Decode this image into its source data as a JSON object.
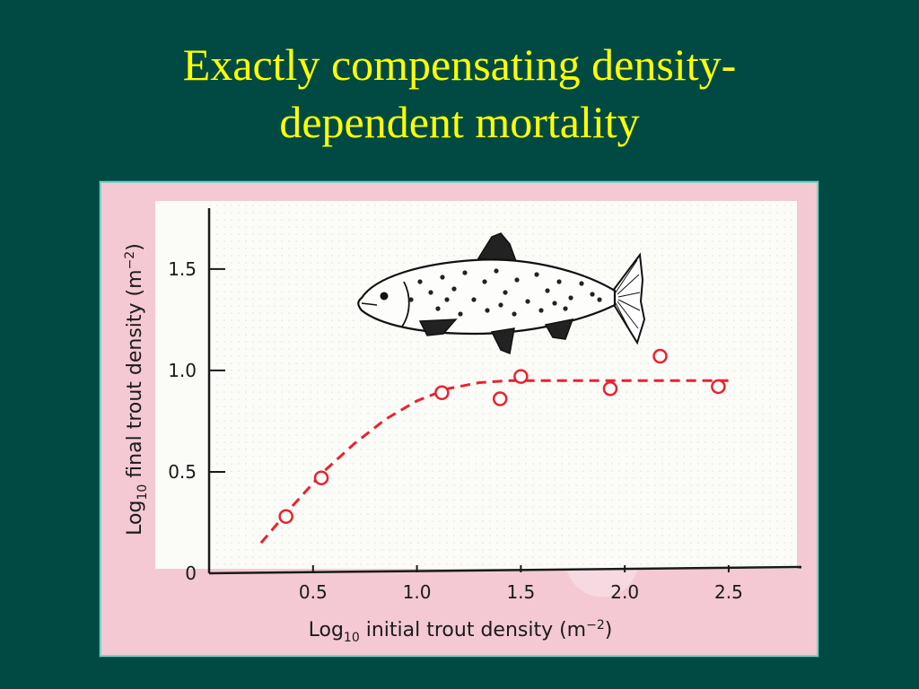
{
  "slide": {
    "title_line1": "Exactly compensating density-",
    "title_line2": "dependent mortality"
  },
  "colors": {
    "background": "#004a44",
    "title": "#ffff00",
    "data_marks": "#e8232f",
    "axis": "#1a1a1a"
  },
  "icons": {
    "illustration": "trout-illustration"
  },
  "chart_data": {
    "type": "scatter",
    "title": "",
    "xlabel_prefix": "Log",
    "xlabel_sub": "10",
    "xlabel_main": " initial trout density (m",
    "xlabel_sup": "−2",
    "xlabel_close": ")",
    "ylabel_prefix": "Log",
    "ylabel_sub": "10",
    "ylabel_main": " final trout density (m",
    "ylabel_sup": "−2",
    "ylabel_close": ")",
    "xlim": [
      0.0,
      2.85
    ],
    "ylim": [
      0.0,
      1.8
    ],
    "x_ticks": [
      0.5,
      1.0,
      1.5,
      2.0,
      2.5
    ],
    "x_tick_labels": [
      "0.5",
      "1.0",
      "1.5",
      "2.0",
      "2.5"
    ],
    "y_ticks": [
      0,
      0.5,
      1.0,
      1.5
    ],
    "y_tick_labels": [
      "0",
      "0.5",
      "1.0",
      "1.5"
    ],
    "grid": true,
    "series": [
      {
        "type": "scatter",
        "x": [
          0.37,
          0.54,
          1.12,
          1.4,
          1.5,
          1.93,
          2.17,
          2.45
        ],
        "y": [
          0.28,
          0.47,
          0.89,
          0.86,
          0.97,
          0.91,
          1.07,
          0.92
        ]
      },
      {
        "type": "line",
        "style": "dashed",
        "x": [
          0.25,
          0.4,
          0.55,
          0.7,
          0.85,
          1.0,
          1.15,
          1.3,
          1.45,
          1.6,
          2.0,
          2.5
        ],
        "y": [
          0.15,
          0.33,
          0.5,
          0.64,
          0.76,
          0.85,
          0.91,
          0.94,
          0.95,
          0.95,
          0.95,
          0.95
        ]
      }
    ]
  }
}
